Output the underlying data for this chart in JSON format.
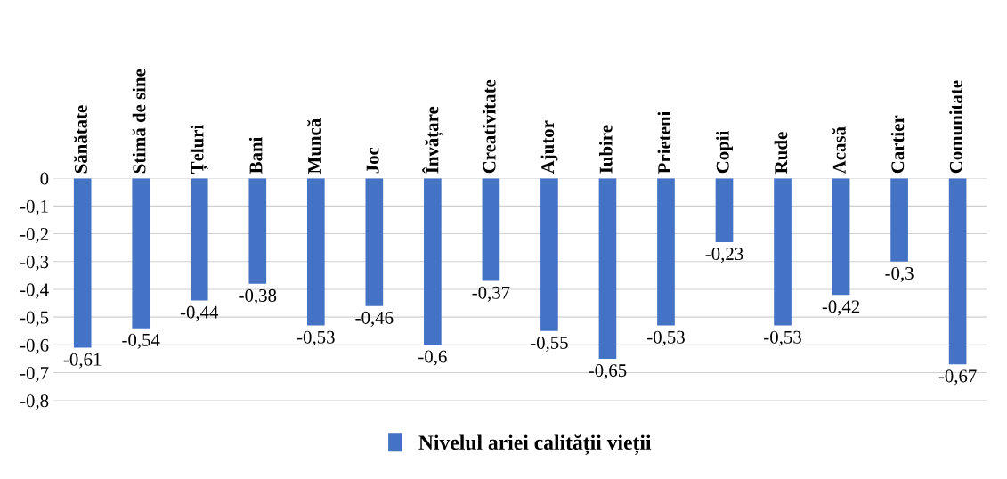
{
  "chart_data": {
    "type": "bar",
    "categories": [
      "Sănătate",
      "Stimă de sine",
      "Țeluri",
      "Bani",
      "Muncă",
      "Joc",
      "Învățare",
      "Creativitate",
      "Ajutor",
      "Iubire",
      "Prieteni",
      "Copii",
      "Rude",
      "Acasă",
      "Cartier",
      "Comunitate"
    ],
    "series": [
      {
        "name": "Nivelul ariei calității vieții",
        "color": "#4472c4",
        "values": [
          -0.61,
          -0.54,
          -0.44,
          -0.38,
          -0.53,
          -0.46,
          -0.6,
          -0.37,
          -0.55,
          -0.65,
          -0.53,
          -0.23,
          -0.53,
          -0.42,
          -0.3,
          -0.67
        ],
        "value_labels": [
          "-0,61",
          "-0,54",
          "-0,44",
          "-0,38",
          "-0,53",
          "-0,46",
          "-0,6",
          "-0,37",
          "-0,55",
          "-0,65",
          "-0,53",
          "-0,23",
          "-0,53",
          "-0,42",
          "-0,3",
          "-0,67"
        ]
      }
    ],
    "ylim": [
      -0.8,
      0
    ],
    "yticks": [
      {
        "value": 0,
        "label": "0"
      },
      {
        "value": -0.1,
        "label": "-0,1"
      },
      {
        "value": -0.2,
        "label": "-0,2"
      },
      {
        "value": -0.3,
        "label": "-0,3"
      },
      {
        "value": -0.4,
        "label": "-0,4"
      },
      {
        "value": -0.5,
        "label": "-0,5"
      },
      {
        "value": -0.6,
        "label": "-0,6"
      },
      {
        "value": -0.7,
        "label": "-0,7"
      },
      {
        "value": -0.8,
        "label": "-0,8"
      }
    ],
    "grid": "y",
    "legend": "bottom"
  }
}
